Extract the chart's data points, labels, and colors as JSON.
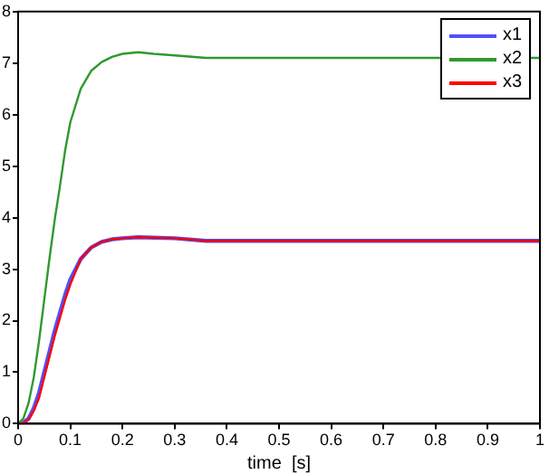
{
  "chart_data": {
    "type": "line",
    "xlabel": "time  [s]",
    "xlim": [
      0,
      1
    ],
    "xticks": [
      0,
      0.1,
      0.2,
      0.3,
      0.4,
      0.5,
      0.6,
      0.7,
      0.8,
      0.9,
      1
    ],
    "ylim": [
      0,
      8
    ],
    "yticks": [
      0,
      1,
      2,
      3,
      4,
      5,
      6,
      7,
      8
    ],
    "grid": false,
    "legend": "top right",
    "line_style": "solid",
    "marker": "none",
    "x": [
      0,
      0.01,
      0.02,
      0.03,
      0.04,
      0.05,
      0.06,
      0.07,
      0.08,
      0.09,
      0.1,
      0.12,
      0.14,
      0.16,
      0.18,
      0.2,
      0.23,
      0.26,
      0.3,
      0.36,
      1
    ],
    "series": [
      {
        "name": "x1",
        "color": "#5050ff",
        "values": [
          0,
          0.02,
          0.1,
          0.3,
          0.6,
          1.0,
          1.4,
          1.8,
          2.15,
          2.5,
          2.8,
          3.2,
          3.42,
          3.53,
          3.58,
          3.6,
          3.62,
          3.61,
          3.6,
          3.55,
          3.55
        ]
      },
      {
        "name": "x2",
        "color": "#2e9a2e",
        "values": [
          0,
          0.1,
          0.4,
          0.9,
          1.6,
          2.4,
          3.2,
          3.95,
          4.6,
          5.3,
          5.85,
          6.5,
          6.85,
          7.02,
          7.12,
          7.18,
          7.21,
          7.18,
          7.15,
          7.1,
          7.1
        ]
      },
      {
        "name": "x3",
        "color": "#ff0000",
        "values": [
          0,
          0.01,
          0.08,
          0.25,
          0.5,
          0.9,
          1.3,
          1.7,
          2.05,
          2.4,
          2.7,
          3.2,
          3.42,
          3.53,
          3.58,
          3.6,
          3.62,
          3.61,
          3.6,
          3.55,
          3.55
        ]
      }
    ]
  }
}
